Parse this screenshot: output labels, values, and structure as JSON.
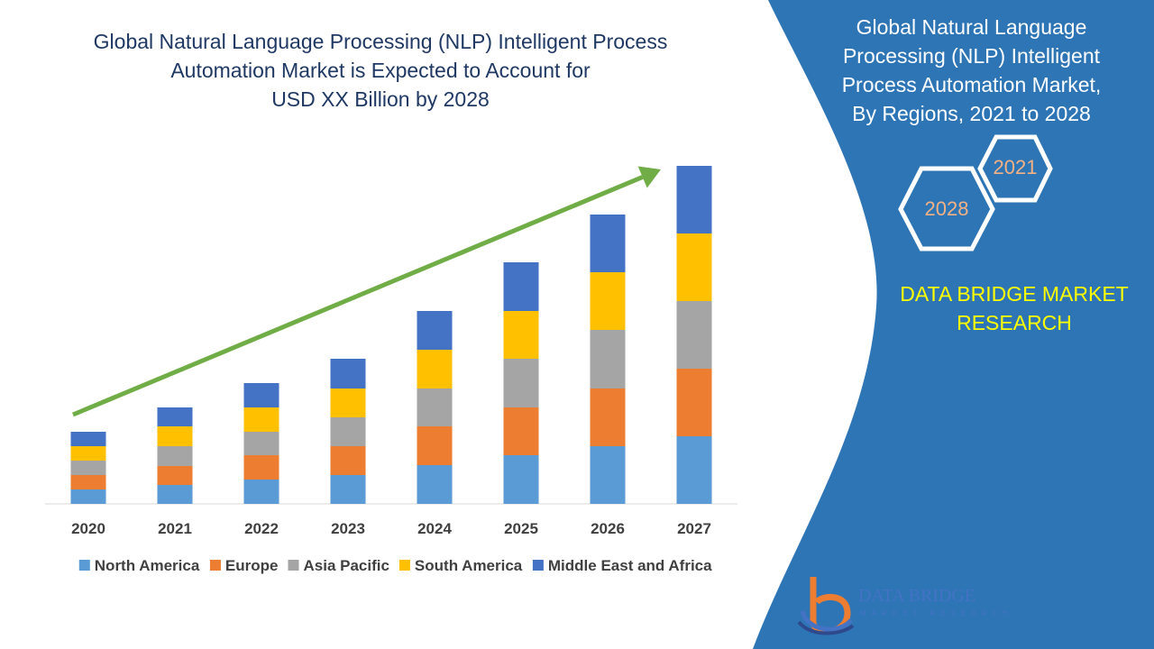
{
  "title": [
    "Global Natural Language Processing (NLP) Intelligent Process",
    "Automation Market is Expected to Account for",
    "USD XX Billion by 2028"
  ],
  "panel": {
    "title": [
      "Global Natural Language",
      "Processing (NLP) Intelligent",
      "Process Automation Market,",
      "By Regions, 2021 to 2028"
    ],
    "hex_2021": "2021",
    "hex_2028": "2028",
    "brand": [
      "DATA BRIDGE MARKET",
      "RESEARCH"
    ],
    "logo_text": "DATA BRIDGE",
    "logo_sub": "MARKET RESEARCH"
  },
  "colors": {
    "panel_blue": "#2e75b6",
    "title_navy": "#1f3864",
    "brand_yellow": "#ffff00",
    "hex_text": "#f4b183",
    "arrow_green": "#70ad47"
  },
  "chart_data": {
    "type": "bar",
    "stacked": true,
    "categories": [
      "2020",
      "2021",
      "2022",
      "2023",
      "2024",
      "2025",
      "2026",
      "2027"
    ],
    "series": [
      {
        "name": "North America",
        "color": "#5b9bd5",
        "values": [
          16,
          21,
          27,
          32,
          43,
          54,
          64,
          75
        ]
      },
      {
        "name": "Europe",
        "color": "#ed7d31",
        "values": [
          16,
          21,
          27,
          32,
          43,
          53,
          64,
          75
        ]
      },
      {
        "name": "Asia Pacific",
        "color": "#a5a5a5",
        "values": [
          16,
          22,
          26,
          32,
          42,
          54,
          65,
          75
        ]
      },
      {
        "name": "South America",
        "color": "#ffc000",
        "values": [
          16,
          22,
          27,
          32,
          43,
          53,
          64,
          75
        ]
      },
      {
        "name": "Middle East and Africa",
        "color": "#4472c4",
        "values": [
          16,
          21,
          27,
          33,
          43,
          54,
          64,
          75
        ]
      }
    ],
    "ylim": [
      0,
      375
    ],
    "grid": false,
    "legend_position": "bottom",
    "trend_arrow": true
  }
}
